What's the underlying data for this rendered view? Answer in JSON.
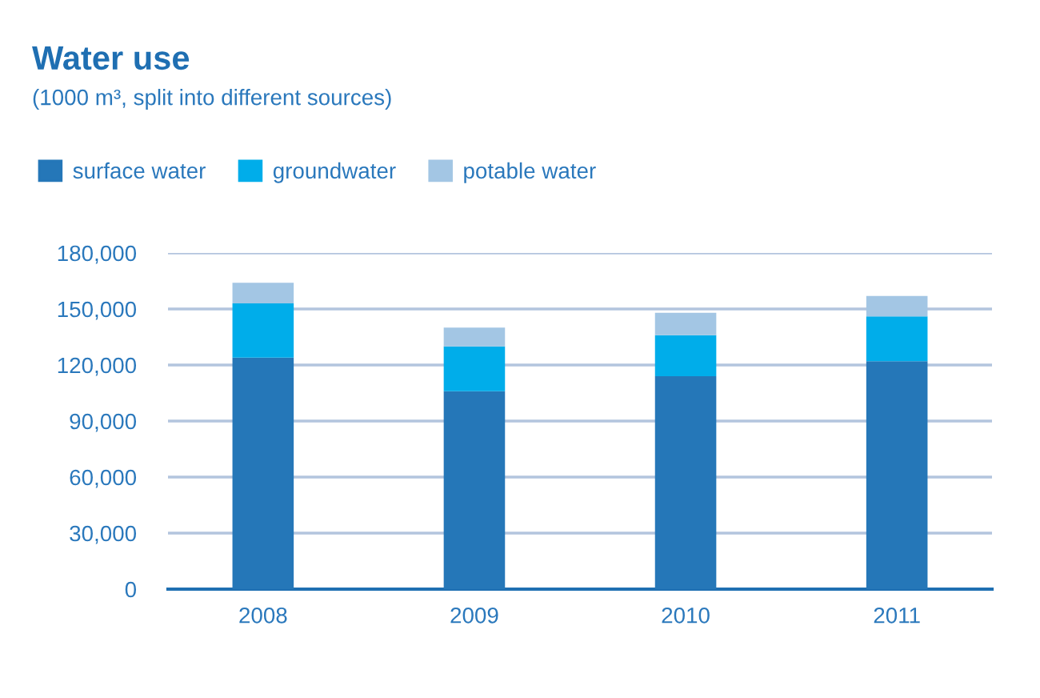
{
  "chart_data": {
    "type": "bar",
    "title": "Water use",
    "subtitle": "(1000 m³, split into different sources)",
    "categories": [
      "2008",
      "2009",
      "2010",
      "2011"
    ],
    "stacked": true,
    "series": [
      {
        "name": "surface water",
        "color": "#2577b8",
        "values": [
          124000,
          106000,
          114000,
          122000
        ]
      },
      {
        "name": "groundwater",
        "color": "#00adea",
        "values": [
          29000,
          24000,
          22000,
          24000
        ]
      },
      {
        "name": "potable water",
        "color": "#a3c6e4",
        "values": [
          11000,
          10000,
          12000,
          11000
        ]
      }
    ],
    "ylim": [
      0,
      180000
    ],
    "yticks": [
      {
        "value": 0,
        "label": "0"
      },
      {
        "value": 30000,
        "label": "30,000"
      },
      {
        "value": 60000,
        "label": "60,000"
      },
      {
        "value": 90000,
        "label": "90,000"
      },
      {
        "value": 120000,
        "label": "120,000"
      },
      {
        "value": 150000,
        "label": "150,000"
      },
      {
        "value": 180000,
        "label": "180,000"
      }
    ],
    "grid": "y",
    "legend": "top left"
  }
}
